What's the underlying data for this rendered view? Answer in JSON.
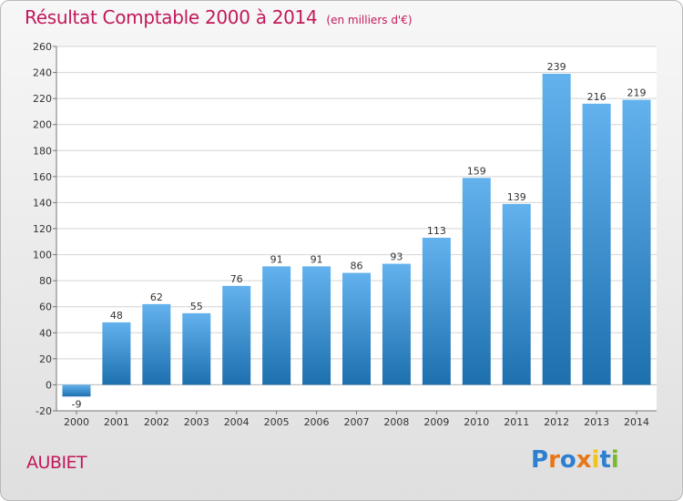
{
  "header": {
    "title": "Résultat Comptable 2000 à 2014",
    "subtitle": "(en milliers d'€)"
  },
  "footer": {
    "commune": "AUBIET",
    "brand": "Proxiti",
    "brand_colors": [
      "#2e7fd0",
      "#e8761a",
      "#2e7fd0",
      "#e8761a",
      "#f2c31b",
      "#2e7fd0",
      "#7cb82f"
    ]
  },
  "colors": {
    "title": "#c2185b",
    "bar_top": "#63b2ee",
    "bar_bottom": "#1d6fae"
  },
  "chart_data": {
    "type": "bar",
    "title": "Résultat Comptable 2000 à 2014",
    "xlabel": "",
    "ylabel": "",
    "ylim": [
      -20,
      260
    ],
    "yticks": [
      -20,
      0,
      20,
      40,
      60,
      80,
      100,
      120,
      140,
      160,
      180,
      200,
      220,
      240,
      260
    ],
    "grid": true,
    "categories": [
      "2000",
      "2001",
      "2002",
      "2003",
      "2004",
      "2005",
      "2006",
      "2007",
      "2008",
      "2009",
      "2010",
      "2011",
      "2012",
      "2013",
      "2014"
    ],
    "values": [
      -9,
      48,
      62,
      55,
      76,
      91,
      91,
      86,
      93,
      113,
      159,
      139,
      239,
      216,
      219
    ]
  }
}
